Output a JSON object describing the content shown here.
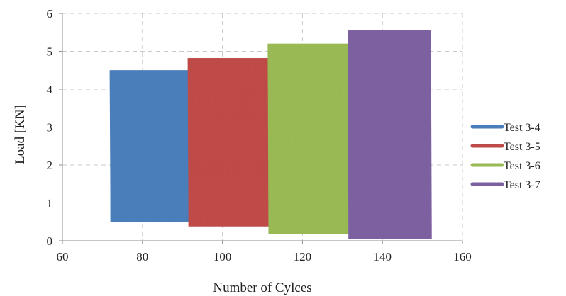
{
  "chart_data": {
    "type": "area",
    "xlabel": "Number of Cylces",
    "ylabel": "Load   [KN]",
    "xlim": [
      60,
      160
    ],
    "ylim": [
      0,
      6
    ],
    "x_ticks": [
      60,
      80,
      100,
      120,
      140,
      160
    ],
    "y_ticks": [
      0,
      1,
      2,
      3,
      4,
      5,
      6
    ],
    "grid": true,
    "legend_position": "right",
    "series": [
      {
        "name": "Test 3-4",
        "color": "#4a7ebb",
        "x_start": 72,
        "x_end": 91.5,
        "y_min": 0.5,
        "y_max": 4.5
      },
      {
        "name": "Test 3-5",
        "color": "#be4b48",
        "x_start": 91.5,
        "x_end": 111.5,
        "y_min": 0.38,
        "y_max": 4.82
      },
      {
        "name": "Test 3-6",
        "color": "#98b954",
        "x_start": 111.5,
        "x_end": 131.5,
        "y_min": 0.17,
        "y_max": 5.2
      },
      {
        "name": "Test 3-7",
        "color": "#7d60a0",
        "x_start": 131.5,
        "x_end": 152,
        "y_min": 0.05,
        "y_max": 5.55
      }
    ]
  }
}
